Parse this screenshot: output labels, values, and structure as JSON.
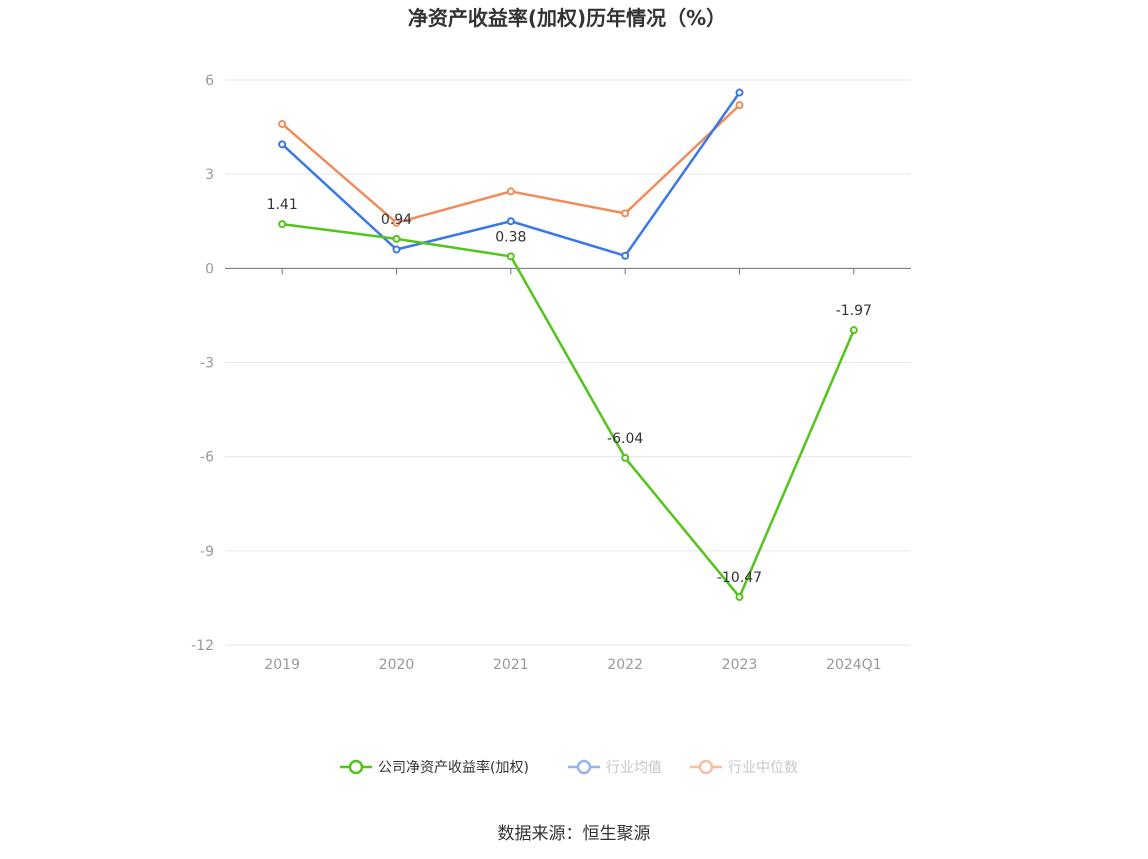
{
  "chart_data": {
    "type": "line",
    "title": "净资产收益率(加权)历年情况（%）",
    "categories": [
      "2019",
      "2020",
      "2021",
      "2022",
      "2023",
      "2024Q1"
    ],
    "ylim": [
      -12,
      6
    ],
    "yticks": [
      6,
      3,
      0,
      -3,
      -6,
      -9,
      -12
    ],
    "grid": true,
    "legend_position": "bottom",
    "series": [
      {
        "name": "公司净资产收益率(加权)",
        "color": "#52c41a",
        "values": [
          1.41,
          0.94,
          0.38,
          -6.04,
          -10.47,
          -1.97
        ],
        "labels": [
          "1.41",
          "0.94",
          "0.38",
          "-6.04",
          "-10.47",
          "-1.97"
        ]
      },
      {
        "name": "行业均值",
        "color": "#3b78e7",
        "values": [
          3.95,
          0.6,
          1.5,
          0.4,
          5.6,
          null
        ]
      },
      {
        "name": "行业中位数",
        "color": "#f08c5a",
        "values": [
          4.6,
          1.45,
          2.45,
          1.75,
          5.2,
          null
        ]
      }
    ]
  },
  "footer": {
    "source": "数据来源：恒生聚源"
  }
}
